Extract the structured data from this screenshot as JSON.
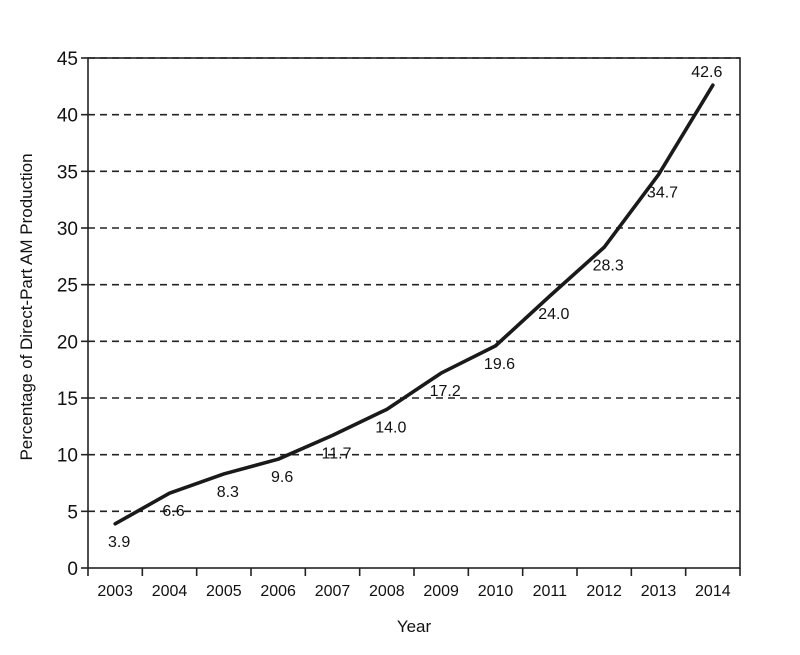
{
  "chart_data": {
    "type": "line",
    "title": "",
    "xlabel": "Year",
    "ylabel": "Percentage of Direct-Part AM Production",
    "categories": [
      "2003",
      "2004",
      "2005",
      "2006",
      "2007",
      "2008",
      "2009",
      "2010",
      "2011",
      "2012",
      "2013",
      "2014"
    ],
    "values": [
      3.9,
      6.6,
      8.3,
      9.6,
      11.7,
      14.0,
      17.2,
      19.6,
      24.0,
      28.3,
      34.7,
      42.6
    ],
    "value_labels": [
      "3.9",
      "6.6",
      "8.3",
      "9.6",
      "11.7",
      "14.0",
      "17.2",
      "19.6",
      "24.0",
      "28.3",
      "34.7",
      "42.6"
    ],
    "ylim": [
      0,
      45
    ],
    "yticks": [
      0,
      5,
      10,
      15,
      20,
      25,
      30,
      35,
      40,
      45
    ],
    "ytick_labels": [
      "0",
      "5",
      "10",
      "15",
      "20",
      "25",
      "30",
      "35",
      "40",
      "45"
    ],
    "grid": "horizontal dashed",
    "line_color": "#1a1a1a"
  }
}
